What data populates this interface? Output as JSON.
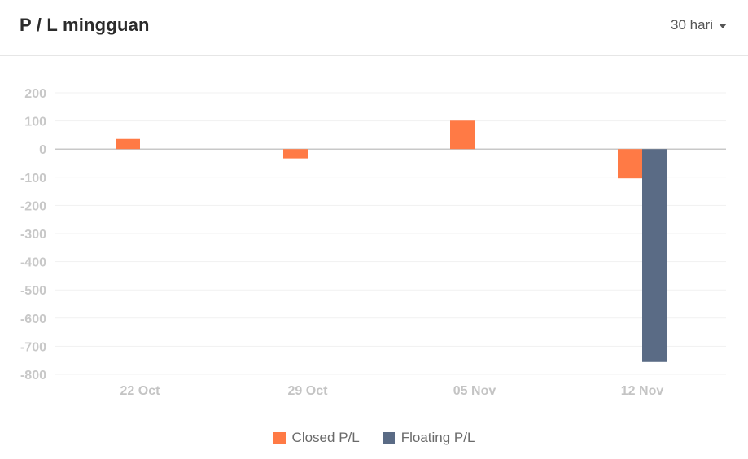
{
  "header": {
    "title": "P / L mingguan",
    "period": "30 hari"
  },
  "chart_data": {
    "type": "bar",
    "categories": [
      "22 Oct",
      "29 Oct",
      "05 Nov",
      "12 Nov"
    ],
    "series": [
      {
        "name": "Closed P/L",
        "color": "#ff7a45",
        "values": [
          36,
          -33,
          101,
          -104
        ]
      },
      {
        "name": "Floating P/L",
        "color": "#5a6b85",
        "values": [
          0,
          0,
          0,
          -756
        ]
      }
    ],
    "ylim": [
      -800,
      200
    ],
    "yticks": [
      200,
      100,
      0,
      -100,
      -200,
      -300,
      -400,
      -500,
      -600,
      -700,
      -800
    ],
    "grid": true,
    "legend": "bottom",
    "title": "",
    "xlabel": "",
    "ylabel": ""
  }
}
